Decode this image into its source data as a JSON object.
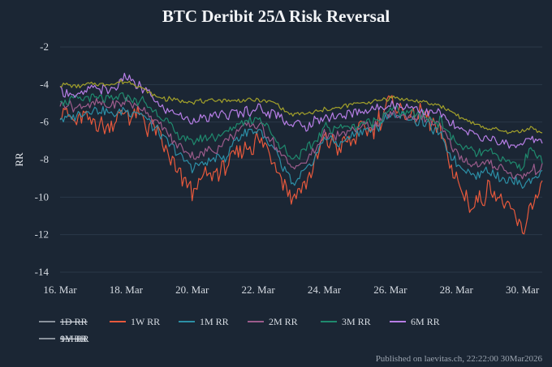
{
  "chart_data": {
    "type": "line",
    "title": "BTC Deribit 25Δ Risk Reversal",
    "ylabel": "RR",
    "xlabel": "",
    "ylim": [
      -14,
      -2
    ],
    "xlim": [
      0,
      14.6
    ],
    "yticks": [
      -2,
      -4,
      -6,
      -8,
      -10,
      -12,
      -14
    ],
    "xticks": [
      {
        "label": "16. Mar",
        "x": 0
      },
      {
        "label": "18. Mar",
        "x": 2
      },
      {
        "label": "20. Mar",
        "x": 4
      },
      {
        "label": "22. Mar",
        "x": 6
      },
      {
        "label": "24. Mar",
        "x": 8
      },
      {
        "label": "26. Mar",
        "x": 10
      },
      {
        "label": "28. Mar",
        "x": 12
      },
      {
        "label": "30. Mar",
        "x": 14
      }
    ],
    "grid": true,
    "legend_position": "bottom",
    "footer": "Published on laevitas.ch, 22:22:00 30Mar2026",
    "series": [
      {
        "name": "1D RR",
        "color": "#8a929c",
        "hidden": true,
        "x": [],
        "y": []
      },
      {
        "name": "1W RR",
        "color": "#e8593c",
        "hidden": false,
        "x": [
          0,
          0.5,
          1,
          1.5,
          2,
          2.5,
          3,
          3.5,
          4,
          4.5,
          5,
          5.5,
          6,
          6.5,
          7,
          7.5,
          8,
          8.5,
          9,
          9.5,
          10,
          10.5,
          11,
          11.5,
          12,
          12.5,
          13,
          13.5,
          14,
          14.3,
          14.6
        ],
        "y": [
          -5.3,
          -5.8,
          -5.9,
          -6.2,
          -5.6,
          -5.9,
          -6.8,
          -8.5,
          -9.7,
          -8.8,
          -8.6,
          -7.5,
          -6.9,
          -8.1,
          -10.1,
          -8.9,
          -6.8,
          -7.4,
          -6.6,
          -6.4,
          -4.8,
          -5.6,
          -5.7,
          -6.6,
          -9.1,
          -10.6,
          -9.6,
          -10.3,
          -11.9,
          -10.2,
          -9.4
        ]
      },
      {
        "name": "1M RR",
        "color": "#2c8fa6",
        "hidden": false,
        "x": [
          0,
          0.5,
          1,
          1.5,
          2,
          2.5,
          3,
          3.5,
          4,
          4.5,
          5,
          5.5,
          6,
          6.5,
          7,
          7.5,
          8,
          8.5,
          9,
          9.5,
          10,
          10.5,
          11,
          11.5,
          12,
          12.5,
          13,
          13.5,
          14,
          14.3,
          14.6
        ],
        "y": [
          -5.9,
          -5.6,
          -5.3,
          -5.6,
          -5.3,
          -5.6,
          -6.6,
          -7.6,
          -8.4,
          -8.2,
          -7.8,
          -6.6,
          -6.4,
          -7.6,
          -9.3,
          -8.6,
          -6.8,
          -7.2,
          -6.5,
          -6.4,
          -5.6,
          -5.8,
          -6.0,
          -6.7,
          -8.2,
          -8.8,
          -8.6,
          -9.0,
          -9.3,
          -9.0,
          -8.7
        ]
      },
      {
        "name": "2M RR",
        "color": "#9c5c8c",
        "hidden": false,
        "x": [
          0,
          0.5,
          1,
          1.5,
          2,
          2.5,
          3,
          3.5,
          4,
          4.5,
          5,
          5.5,
          6,
          6.5,
          7,
          7.5,
          8,
          8.5,
          9,
          9.5,
          10,
          10.5,
          11,
          11.5,
          12,
          12.5,
          13,
          13.5,
          14,
          14.3,
          14.6
        ],
        "y": [
          -5.1,
          -5.2,
          -5.0,
          -5.2,
          -4.9,
          -5.3,
          -6.1,
          -7.2,
          -7.8,
          -7.6,
          -7.1,
          -6.3,
          -6.1,
          -7.2,
          -8.5,
          -8.1,
          -6.6,
          -6.8,
          -6.3,
          -6.2,
          -5.4,
          -5.7,
          -5.8,
          -6.3,
          -7.6,
          -8.3,
          -8.2,
          -8.6,
          -8.9,
          -8.6,
          -8.4
        ]
      },
      {
        "name": "3M RR",
        "color": "#1f8a6e",
        "hidden": false,
        "x": [
          0,
          0.5,
          1,
          1.5,
          2,
          2.5,
          3,
          3.5,
          4,
          4.5,
          5,
          5.5,
          6,
          6.5,
          7,
          7.5,
          8,
          8.5,
          9,
          9.5,
          10,
          10.5,
          11,
          11.5,
          12,
          12.5,
          13,
          13.5,
          14,
          14.3,
          14.6
        ],
        "y": [
          -4.8,
          -4.9,
          -4.7,
          -4.9,
          -4.6,
          -4.9,
          -5.6,
          -6.6,
          -7.1,
          -6.9,
          -6.6,
          -5.9,
          -5.8,
          -6.8,
          -7.9,
          -7.5,
          -6.3,
          -6.4,
          -6.1,
          -6.0,
          -5.3,
          -5.6,
          -5.7,
          -6.0,
          -7.1,
          -7.6,
          -7.7,
          -8.0,
          -8.3,
          -7.4,
          -8.2
        ]
      },
      {
        "name": "6M RR",
        "color": "#b77ee6",
        "hidden": false,
        "x": [
          0,
          0.5,
          1,
          1.5,
          2,
          2.5,
          3,
          3.5,
          4,
          4.5,
          5,
          5.5,
          6,
          6.5,
          7,
          7.5,
          8,
          8.5,
          9,
          9.5,
          10,
          10.5,
          11,
          11.5,
          12,
          12.5,
          13,
          13.5,
          14,
          14.3,
          14.6
        ],
        "y": [
          -4.3,
          -4.6,
          -4.1,
          -4.3,
          -3.6,
          -4.2,
          -5.1,
          -5.6,
          -5.9,
          -5.8,
          -5.6,
          -5.5,
          -5.3,
          -5.6,
          -6.1,
          -6.2,
          -5.8,
          -5.6,
          -5.5,
          -5.4,
          -5.0,
          -5.1,
          -5.4,
          -5.6,
          -6.3,
          -6.7,
          -6.9,
          -7.1,
          -7.2,
          -6.9,
          -7.0
        ]
      },
      {
        "name": "9M RR",
        "color": "#a3a12a",
        "hidden": false,
        "x": [
          0,
          0.5,
          1,
          1.5,
          2,
          2.5,
          3,
          3.5,
          4,
          4.5,
          5,
          5.5,
          6,
          6.5,
          7,
          7.5,
          8,
          8.5,
          9,
          9.5,
          10,
          10.5,
          11,
          11.5,
          12,
          12.5,
          13,
          13.5,
          14,
          14.3,
          14.6
        ],
        "y": [
          -4.0,
          -4.1,
          -3.9,
          -4.0,
          -3.8,
          -4.2,
          -4.7,
          -4.8,
          -4.9,
          -4.9,
          -4.8,
          -4.9,
          -4.8,
          -5.0,
          -5.6,
          -5.6,
          -5.3,
          -5.2,
          -5.0,
          -4.9,
          -4.7,
          -4.8,
          -5.0,
          -5.1,
          -5.6,
          -6.1,
          -6.4,
          -6.5,
          -6.5,
          -6.3,
          -6.6
        ]
      },
      {
        "name": "1Y RR",
        "color": "#8a929c",
        "hidden": true,
        "x": [],
        "y": []
      }
    ]
  }
}
